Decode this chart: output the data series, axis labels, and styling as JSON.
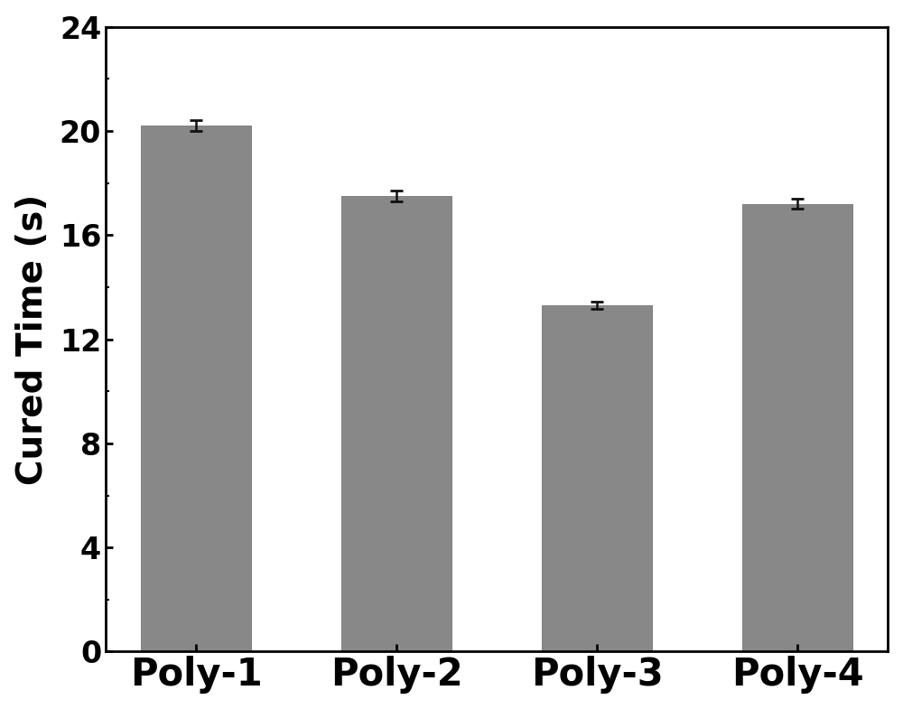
{
  "categories": [
    "Poly-1",
    "Poly-2",
    "Poly-3",
    "Poly-4"
  ],
  "values": [
    20.2,
    17.5,
    13.3,
    17.2
  ],
  "errors": [
    0.2,
    0.2,
    0.15,
    0.2
  ],
  "bar_color": "#888888",
  "bar_edgecolor": "#666666",
  "error_color": "#111111",
  "ylabel": "Cured Time (s)",
  "ylim": [
    0,
    24
  ],
  "yticks": [
    0,
    4,
    8,
    12,
    16,
    20,
    24
  ],
  "bar_width": 0.55,
  "label_fontsize": 28,
  "tick_fontsize": 24,
  "xtick_fontsize": 30,
  "background_color": "#ffffff",
  "axes_background": "#ffffff"
}
